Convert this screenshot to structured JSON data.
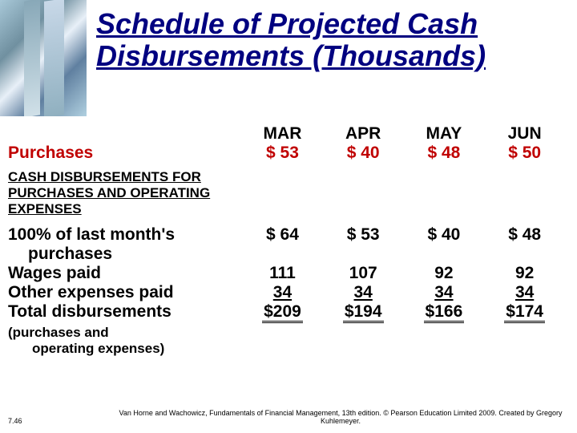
{
  "title_line1": "Schedule of Projected Cash",
  "title_line2": "Disbursements (Thousands)",
  "months": {
    "m1": "MAR",
    "m2": "APR",
    "m3": "MAY",
    "m4": "JUN"
  },
  "rows": {
    "purchases": {
      "label": "Purchases",
      "m1": "$  53",
      "m2": "$  40",
      "m3": "$  48",
      "m4": "$  50"
    },
    "section_header": "CASH DISBURSEMENTS FOR PURCHASES AND OPERATING EXPENSES",
    "lastmonth": {
      "label_l1": "100% of last month's",
      "label_l2": "purchases",
      "m1": "$  64",
      "m2": "$  53",
      "m3": "$  40",
      "m4": "$  48"
    },
    "wages": {
      "label": "Wages paid",
      "m1": "111",
      "m2": "107",
      "m3": "92",
      "m4": "92"
    },
    "other": {
      "label": "Other expenses paid",
      "m1": "34",
      "m2": "34",
      "m3": "34",
      "m4": "34"
    },
    "total": {
      "label": "Total disbursements",
      "m1": "$209",
      "m2": "$194",
      "m3": "$166",
      "m4": "$174"
    },
    "subnote_l1": "(purchases and",
    "subnote_l2": "operating expenses)"
  },
  "footer": {
    "page": "7.46",
    "credit": "Van Horne and Wachowicz, Fundamentals of Financial Management, 13th edition. © Pearson Education Limited 2009. Created by Gregory Kuhlemeyer."
  },
  "colors": {
    "title": "#000080",
    "purchases": "#c00000",
    "text": "#000000",
    "background": "#ffffff"
  },
  "fonts": {
    "title_size": 36,
    "body_size": 21,
    "section_size": 17,
    "footer_size": 9
  }
}
